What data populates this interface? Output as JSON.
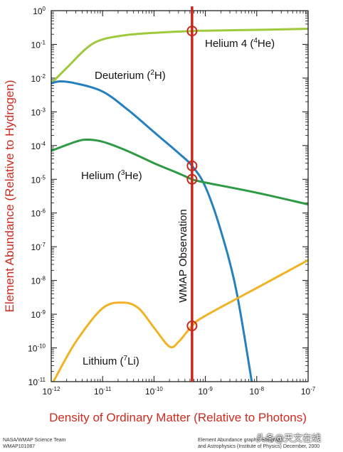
{
  "chart_data": {
    "type": "line",
    "xlabel": "Density of Ordinary Matter (Relative to Photons)",
    "ylabel": "Element Abundance (Relative to Hydrogen)",
    "x_scale": "log",
    "y_scale": "log",
    "xlim": [
      1e-12,
      1e-07
    ],
    "ylim": [
      1e-11,
      1
    ],
    "x_ticks": [
      {
        "base": "10",
        "exp": "-12"
      },
      {
        "base": "10",
        "exp": "-11"
      },
      {
        "base": "10",
        "exp": "-10"
      },
      {
        "base": "10",
        "exp": "-9"
      },
      {
        "base": "10",
        "exp": "-8"
      },
      {
        "base": "10",
        "exp": "-7"
      }
    ],
    "y_ticks": [
      {
        "base": "10",
        "exp": "0"
      },
      {
        "base": "10",
        "exp": "-1"
      },
      {
        "base": "10",
        "exp": "-2"
      },
      {
        "base": "10",
        "exp": "-3"
      },
      {
        "base": "10",
        "exp": "-4"
      },
      {
        "base": "10",
        "exp": "-5"
      },
      {
        "base": "10",
        "exp": "-6"
      },
      {
        "base": "10",
        "exp": "-7"
      },
      {
        "base": "10",
        "exp": "-8"
      },
      {
        "base": "10",
        "exp": "-9"
      },
      {
        "base": "10",
        "exp": "-10"
      },
      {
        "base": "10",
        "exp": "-11"
      }
    ],
    "series": [
      {
        "name_parts": [
          "Helium 4 (",
          "4",
          "He)"
        ],
        "color": "#9ec93c",
        "x": [
          1e-12,
          2e-12,
          5e-12,
          1e-11,
          3e-11,
          1e-10,
          5.5e-10,
          1e-09,
          1e-08,
          1e-07
        ],
        "y": [
          0.007,
          0.02,
          0.08,
          0.14,
          0.19,
          0.22,
          0.25,
          0.255,
          0.27,
          0.29
        ]
      },
      {
        "name_parts": [
          "Deuterium (",
          "2",
          "H)"
        ],
        "color": "#2580bf",
        "x": [
          1e-12,
          1.5e-12,
          3e-12,
          1e-11,
          3e-11,
          1e-10,
          3e-10,
          5.5e-10,
          1e-09,
          2e-09,
          4e-09,
          8e-09
        ],
        "y": [
          0.007,
          0.008,
          0.007,
          0.004,
          0.0012,
          0.00025,
          6e-05,
          2.5e-05,
          6e-06,
          3e-07,
          5e-09,
          1e-11
        ]
      },
      {
        "name_parts": [
          "Helium (",
          "3",
          "He)"
        ],
        "color": "#2e9a46",
        "x": [
          1e-12,
          3e-12,
          5e-12,
          1e-11,
          3e-11,
          1e-10,
          3e-10,
          5.5e-10,
          1e-09,
          1e-08,
          1e-07
        ],
        "y": [
          7e-05,
          0.00013,
          0.00015,
          0.00013,
          7e-05,
          3e-05,
          1.5e-05,
          1e-05,
          8e-06,
          4e-06,
          1.8e-06
        ]
      },
      {
        "name_parts": [
          "Lithium (",
          "7",
          "Li)"
        ],
        "color": "#f0b325",
        "x": [
          1.1e-12,
          3e-12,
          1e-11,
          2.5e-11,
          5e-11,
          1e-10,
          2e-10,
          3e-10,
          5.5e-10,
          1e-09,
          1e-08,
          1e-07
        ],
        "y": [
          1e-11,
          1.5e-10,
          1.5e-09,
          2.2e-09,
          1.5e-09,
          4e-10,
          1.1e-10,
          1.5e-10,
          4.5e-10,
          9e-10,
          6e-09,
          4e-08
        ]
      }
    ],
    "observation": {
      "label": "WMAP Observation",
      "x": 5.5e-10,
      "color": "#c8281c",
      "markers": [
        {
          "series": "Helium 4",
          "y": 0.25
        },
        {
          "series": "Deuterium",
          "y": 2.5e-05
        },
        {
          "series": "Helium 3",
          "y": 1e-05
        },
        {
          "series": "Lithium 7",
          "y": 4.5e-10
        }
      ]
    }
  },
  "credits": {
    "left_line1": "NASA/WMAP Science Team",
    "left_line2": "WMAP101087",
    "right_line1": "Element Abundance graphs: Steigman,",
    "right_line2": "and Astrophysics (Institute of Physics) December, 2000"
  },
  "watermark": "头条@天文在线"
}
